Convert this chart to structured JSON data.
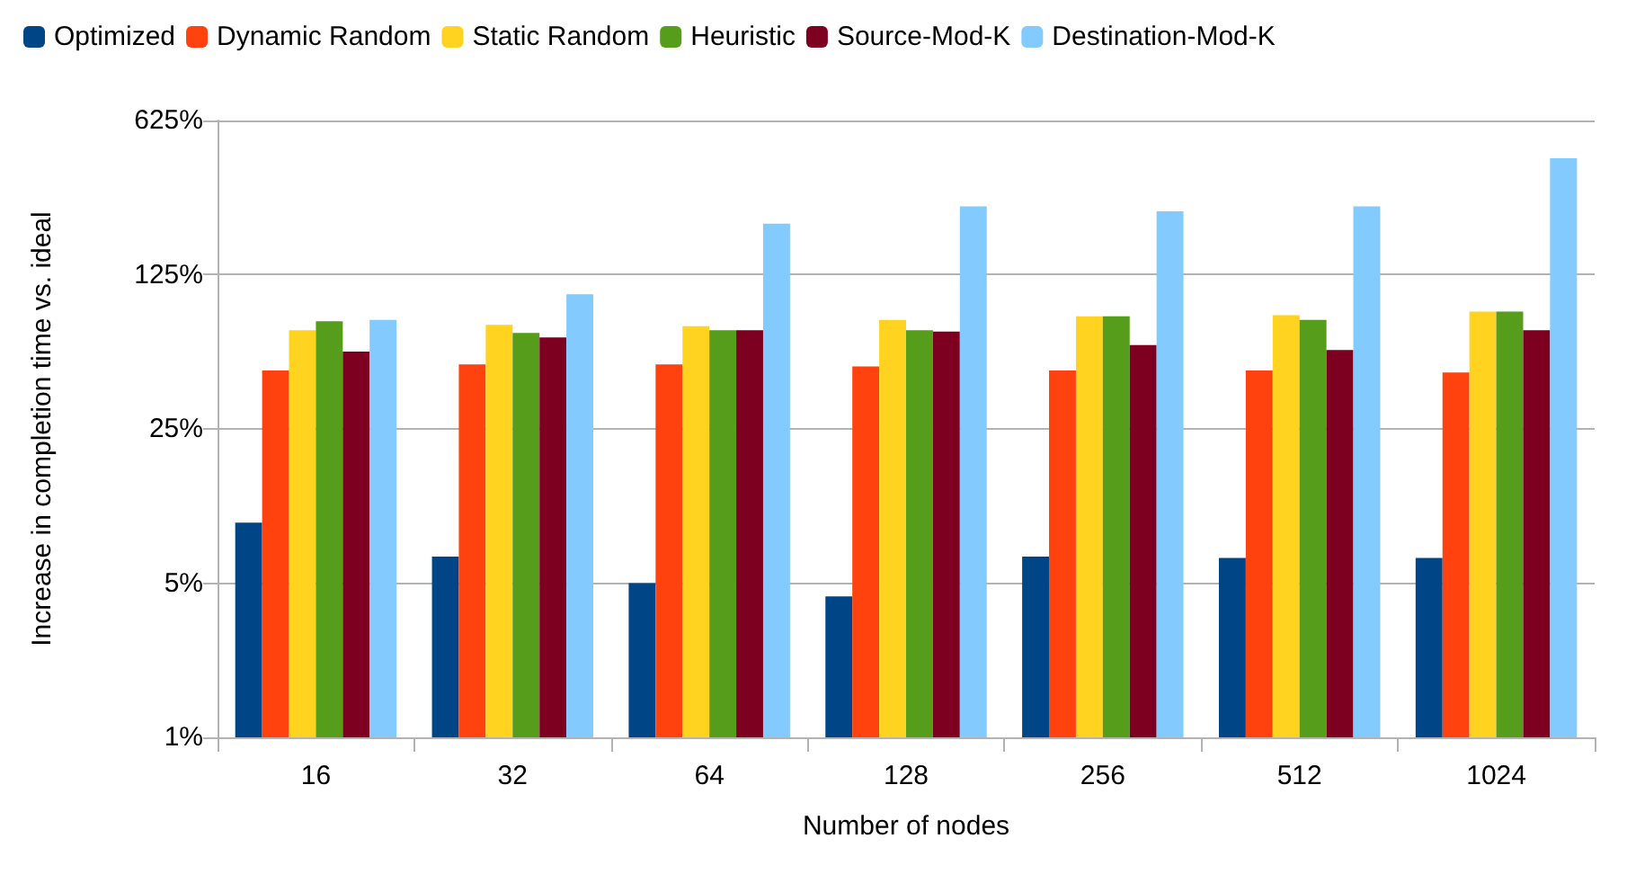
{
  "chart_data": {
    "type": "bar",
    "xlabel": "Number of nodes",
    "ylabel": "Increase in completion time vs. ideal",
    "categories": [
      "16",
      "32",
      "64",
      "128",
      "256",
      "512",
      "1024"
    ],
    "series": [
      {
        "name": "Optimized",
        "color": "#004586",
        "values": [
          9.4,
          6.6,
          5.0,
          4.35,
          6.6,
          6.5,
          6.5
        ]
      },
      {
        "name": "Dynamic Random",
        "color": "#ff420e",
        "values": [
          46,
          49,
          49,
          48,
          46,
          46,
          45
        ]
      },
      {
        "name": "Static Random",
        "color": "#ffd320",
        "values": [
          70,
          74,
          73,
          78,
          81,
          82,
          85
        ]
      },
      {
        "name": "Heuristic",
        "color": "#579d1c",
        "values": [
          77,
          68,
          70,
          70,
          81,
          78,
          85
        ]
      },
      {
        "name": "Source-Mod-K",
        "color": "#7e0021",
        "values": [
          56,
          65,
          70,
          69,
          60,
          57,
          70
        ]
      },
      {
        "name": "Destination-Mod-K",
        "color": "#83caff",
        "values": [
          78,
          102,
          213,
          255,
          242,
          255,
          421
        ]
      }
    ],
    "log": true,
    "ylim": [
      1,
      625
    ],
    "yticks": [
      {
        "value": 1,
        "label": "1%"
      },
      {
        "value": 5,
        "label": "5%"
      },
      {
        "value": 25,
        "label": "25%"
      },
      {
        "value": 125,
        "label": "125%"
      },
      {
        "value": 625,
        "label": "625%"
      }
    ],
    "grid": "y",
    "legend": "top"
  }
}
